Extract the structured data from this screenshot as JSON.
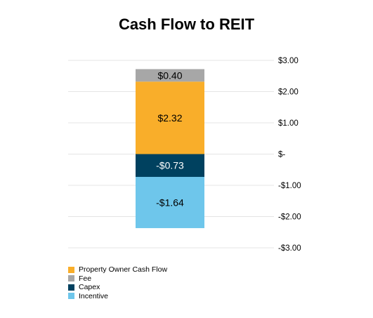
{
  "chart_data": {
    "type": "bar",
    "stacked": true,
    "title": "Cash Flow to REIT",
    "categories": [
      ""
    ],
    "series": [
      {
        "name": "Property Owner Cash Flow",
        "values": [
          2.32
        ],
        "label": "$2.32",
        "color": "#F9AE2A"
      },
      {
        "name": "Fee",
        "values": [
          0.4
        ],
        "label": "$0.40",
        "color": "#A7A7A7"
      },
      {
        "name": "Capex",
        "values": [
          -0.73
        ],
        "label": "-$0.73",
        "color": "#00415F"
      },
      {
        "name": "Incentive",
        "values": [
          -1.64
        ],
        "label": "-$1.64",
        "color": "#6EC6EB"
      }
    ],
    "ylim": [
      -3,
      3
    ],
    "yticks": [
      3,
      2,
      1,
      0,
      -1,
      -2,
      -3
    ],
    "ytick_labels": [
      "$3.00",
      "$2.00",
      "$1.00",
      "$-",
      "-$1.00",
      "-$2.00",
      "-$3.00"
    ],
    "xlabel": "",
    "ylabel": "",
    "grid": true,
    "legend_position": "bottom-left"
  }
}
